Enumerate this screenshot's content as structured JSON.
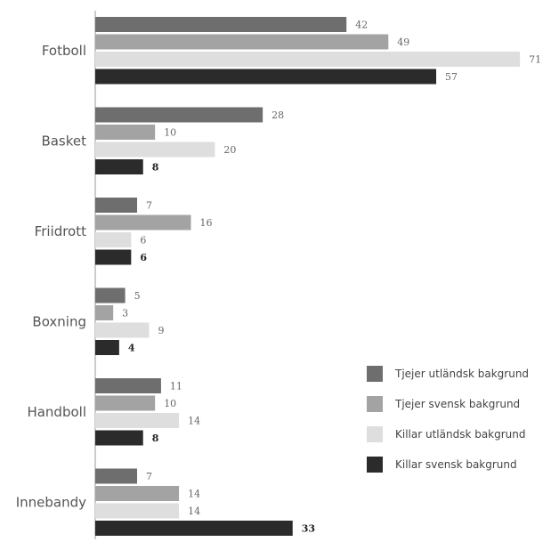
{
  "chart_data": {
    "type": "bar",
    "orientation": "horizontal",
    "categories": [
      "Fotboll",
      "Basket",
      "Friidrott",
      "Boxning",
      "Handboll",
      "Innebandy"
    ],
    "series": [
      {
        "name": "Tjejer utländsk bakgrund",
        "color": "#6e6e6e",
        "values": [
          42,
          28,
          7,
          5,
          11,
          7
        ]
      },
      {
        "name": "Tjejer svensk bakgrund",
        "color": "#a3a3a3",
        "values": [
          49,
          10,
          16,
          3,
          10,
          14
        ]
      },
      {
        "name": "Killar utländsk bakgrund",
        "color": "#dedede",
        "values": [
          71,
          20,
          6,
          9,
          14,
          14
        ]
      },
      {
        "name": "Killar svensk bakgrund",
        "color": "#2b2b2b",
        "values": [
          57,
          8,
          6,
          4,
          8,
          33
        ]
      }
    ],
    "xlim": [
      0,
      75
    ],
    "grid": false,
    "legend": "right"
  }
}
